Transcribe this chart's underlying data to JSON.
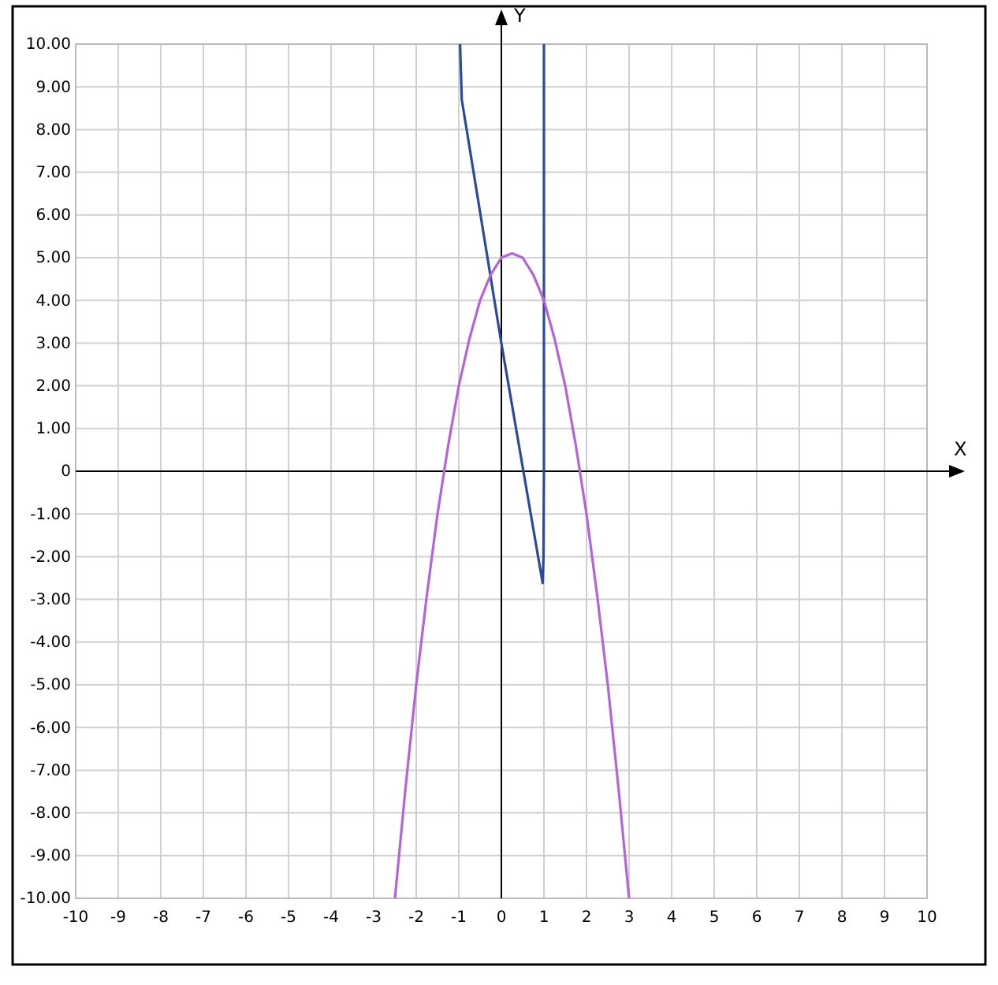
{
  "chart_data": {
    "type": "line",
    "xlabel": "X",
    "ylabel": "Y",
    "xlim": [
      -10,
      10
    ],
    "ylim": [
      -10,
      10
    ],
    "xticks": [
      -10,
      -9,
      -8,
      -7,
      -6,
      -5,
      -4,
      -3,
      -2,
      -1,
      0,
      1,
      2,
      3,
      4,
      5,
      6,
      7,
      8,
      9,
      10
    ],
    "yticks": [
      {
        "value": -10,
        "label": "-10.00"
      },
      {
        "value": -9,
        "label": "-9.00"
      },
      {
        "value": -8,
        "label": "-8.00"
      },
      {
        "value": -7,
        "label": "-7.00"
      },
      {
        "value": -6,
        "label": "-6.00"
      },
      {
        "value": -5,
        "label": "-5.00"
      },
      {
        "value": -4,
        "label": "-4.00"
      },
      {
        "value": -3,
        "label": "-3.00"
      },
      {
        "value": -2,
        "label": "-2.00"
      },
      {
        "value": -1,
        "label": "-1.00"
      },
      0,
      {
        "value": 1,
        "label": "1.00"
      },
      {
        "value": 2,
        "label": "2.00"
      },
      {
        "value": 3,
        "label": "3.00"
      },
      {
        "value": 4,
        "label": "4.00"
      },
      {
        "value": 5,
        "label": "5.00"
      },
      {
        "value": 6,
        "label": "6.00"
      },
      {
        "value": 7,
        "label": "7.00"
      },
      {
        "value": 8,
        "label": "8.00"
      },
      {
        "value": 9,
        "label": "9.00"
      },
      {
        "value": 10,
        "label": "10.00"
      }
    ],
    "grid": true,
    "marker": "none",
    "line_style": "solid",
    "series": [
      {
        "color": "#2b4a9b",
        "x": [
          -0.97,
          -0.93,
          0,
          0.97,
          0.99,
          1.0,
          1.0
        ],
        "values": [
          10,
          8.7,
          3.0,
          -2.62,
          -2.0,
          0,
          10
        ]
      },
      {
        "color": "#b662d8",
        "x": [
          -2.5,
          -2.25,
          -2,
          -1.75,
          -1.5,
          -1.25,
          -1,
          -0.75,
          -0.5,
          -0.25,
          0,
          0.25,
          0.5,
          0.75,
          1,
          1.25,
          1.5,
          1.75,
          2,
          2.25,
          2.5,
          2.75,
          3
        ],
        "values": [
          -10,
          -7.4,
          -5,
          -2.9,
          -1,
          0.6,
          2,
          3.1,
          4,
          4.6,
          5,
          5.1,
          5,
          4.6,
          4,
          3.1,
          2,
          0.6,
          -1,
          -2.9,
          -5,
          -7.4,
          -10
        ]
      }
    ]
  }
}
